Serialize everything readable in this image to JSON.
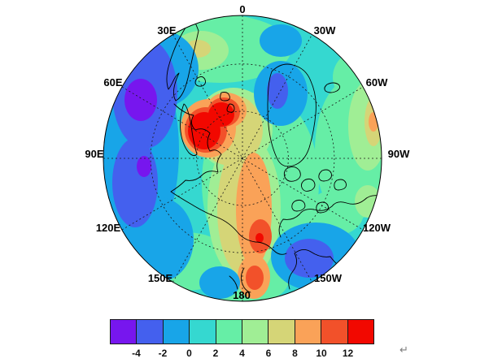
{
  "window": {
    "background": "#ffffff"
  },
  "misc": {
    "return_mark": "↵"
  },
  "chart_data": {
    "type": "heatmap",
    "subtype": "filled contour map on polar stereographic projection (Arctic, North Pole at center)",
    "title": "",
    "xlabel": "",
    "ylabel": "",
    "grid": "dashed graticule: meridians every 30 degrees, two dashed latitude circles, solid outer rim",
    "legend_position": "horizontal colorbar below map",
    "longitude_labels": [
      "0",
      "30E",
      "60E",
      "90E",
      "120E",
      "150E",
      "180",
      "150W",
      "120W",
      "90W",
      "60W",
      "30W"
    ],
    "field_base_color": "#35D8D0",
    "colorbar": {
      "orientation": "horizontal",
      "ticks": [
        -4,
        -2,
        0,
        2,
        4,
        6,
        8,
        10,
        12
      ],
      "segment_colors": [
        "#7716EE",
        "#4460EE",
        "#18A5E8",
        "#35D8D0",
        "#66EEA6",
        "#A0EE95",
        "#D5D577",
        "#FAA258",
        "#F2512A",
        "#F20800"
      ],
      "segment_ranges": [
        "< -4",
        "-4 to -2",
        "-2 to 0",
        "0 to 2",
        "2 to 4",
        "4 to 6",
        "6 to 8",
        "8 to 10",
        "10 to 12",
        "> 12"
      ]
    },
    "features": [
      {
        "region": "Kara Sea / Novaya Zemlya sector (30E-60E, high Arctic)",
        "value": "> 12",
        "description": "strongest warm anomaly core (red), ringed by 10-12 and 8-10 contours"
      },
      {
        "region": "Western Siberia / Urals (60E-90E mid-latitudes)",
        "value": "< -4",
        "description": "strong cold anomaly (blue) with two purple < -4 cores"
      },
      {
        "region": "central Arctic toward 180 (Chukotka/Bering)",
        "value": "6 to 12",
        "description": "warm tan/orange band from near the pole to the bottom rim, local max > 12 small red spot near 180"
      },
      {
        "region": "Bering Sea coast near 180 rim",
        "value": "8 to 12",
        "description": "secondary warm blob at bottom of map"
      },
      {
        "region": "Greenland / Baffin sector (30W-60W)",
        "value": "-4 to 0",
        "description": "cold blue patch"
      },
      {
        "region": "Gulf of Alaska / NE Pacific (150W)",
        "value": "-4 to 0",
        "description": "cold blue patch at lower right"
      },
      {
        "region": "Scandinavia / top of map",
        "value": "2 to 8",
        "description": "green/khaki mildly warm patch"
      },
      {
        "region": "remaining ocean/land background",
        "value": "0 to 4",
        "description": "near-neutral teal and aquamarine"
      }
    ]
  }
}
